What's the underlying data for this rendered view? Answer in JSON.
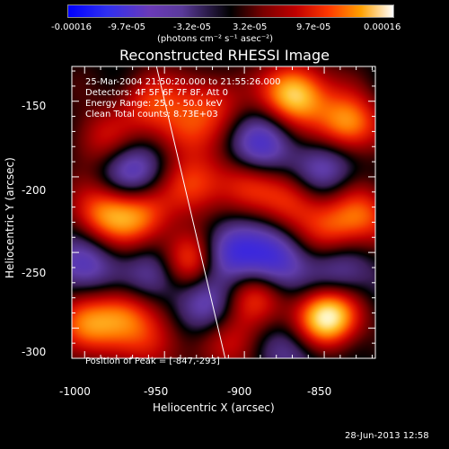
{
  "colorbar": {
    "ticks": [
      "-0.00016",
      "-9.7e-05",
      "-3.2e-05",
      "3.2e-05",
      "9.7e-05",
      "0.00016"
    ],
    "unit": "(photons cm⁻² s⁻¹ asec⁻²)"
  },
  "chart_data": {
    "type": "heatmap",
    "title": "Reconstructed RHESSI Image",
    "xlabel": "Heliocentric X (arcsec)",
    "ylabel": "Heliocentric Y (arcsec)",
    "xlim": [
      -1008,
      -818
    ],
    "ylim": [
      -320,
      -127
    ],
    "x_ticks": [
      -1000,
      -950,
      -900,
      -850
    ],
    "y_ticks": [
      -150,
      -200,
      -250,
      -300
    ],
    "annotations": [
      "25-Mar-2004 21:50:20.000 to 21:55:26.000",
      "Detectors: 4F 5F 6F 7F 8F, Att 0",
      "Energy Range: 25.0 - 50.0 keV",
      "Clean    Total counts: 8.73E+03"
    ],
    "peak_label": "Position of Peak = [-847,-293]",
    "peak": [
      -847,
      -293
    ],
    "limb_line": [
      [
        -955,
        -127
      ],
      [
        -912,
        -320
      ]
    ],
    "sources": [
      {
        "x": -848,
        "y": -293,
        "v": 1.0
      },
      {
        "x": -868,
        "y": -145,
        "v": 0.85
      },
      {
        "x": -835,
        "y": -165,
        "v": 0.7
      },
      {
        "x": -988,
        "y": -225,
        "v": 0.55
      },
      {
        "x": -965,
        "y": -225,
        "v": 0.5
      },
      {
        "x": -935,
        "y": -255,
        "v": 0.65
      },
      {
        "x": -1000,
        "y": -300,
        "v": 0.6
      },
      {
        "x": -975,
        "y": -290,
        "v": 0.5
      },
      {
        "x": -930,
        "y": -205,
        "v": 0.45
      },
      {
        "x": -940,
        "y": -170,
        "v": 0.4
      },
      {
        "x": -920,
        "y": -150,
        "v": 0.4
      },
      {
        "x": -870,
        "y": -215,
        "v": 0.45
      },
      {
        "x": -900,
        "y": -205,
        "v": 0.35
      },
      {
        "x": -895,
        "y": -280,
        "v": 0.4
      },
      {
        "x": -845,
        "y": -235,
        "v": 0.4
      },
      {
        "x": -825,
        "y": -225,
        "v": 0.45
      },
      {
        "x": -960,
        "y": -150,
        "v": 0.4
      },
      {
        "x": -990,
        "y": -175,
        "v": 0.35
      },
      {
        "x": -955,
        "y": -310,
        "v": 0.35
      },
      {
        "x": -905,
        "y": -310,
        "v": 0.3
      },
      {
        "x": -910,
        "y": -250,
        "v": -0.6
      },
      {
        "x": -880,
        "y": -255,
        "v": -0.5
      },
      {
        "x": -970,
        "y": -195,
        "v": -0.45
      },
      {
        "x": -890,
        "y": -180,
        "v": -0.45
      },
      {
        "x": -850,
        "y": -195,
        "v": -0.4
      },
      {
        "x": -1000,
        "y": -260,
        "v": -0.4
      },
      {
        "x": -955,
        "y": -265,
        "v": -0.4
      },
      {
        "x": -925,
        "y": -285,
        "v": -0.35
      },
      {
        "x": -870,
        "y": -315,
        "v": -0.3
      },
      {
        "x": -840,
        "y": -265,
        "v": -0.35
      }
    ]
  },
  "timestamp": "28-Jun-2013 12:58"
}
